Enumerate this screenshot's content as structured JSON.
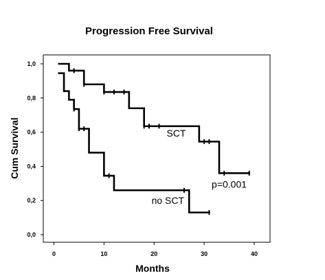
{
  "chart_data": {
    "type": "line",
    "title": "Progression Free Survival",
    "xlabel": "Months",
    "ylabel": "Cum Survival",
    "xlim": [
      -2,
      42
    ],
    "ylim": [
      0.0,
      1.0
    ],
    "x_ticks": [
      0,
      10,
      20,
      30,
      40
    ],
    "x_tick_labels": [
      "0",
      "10",
      "20",
      "30",
      "40"
    ],
    "y_ticks": [
      0.0,
      0.2,
      0.4,
      0.6,
      0.8,
      1.0
    ],
    "y_tick_labels": [
      "0,0",
      "0,2",
      "0,4",
      "0,6",
      "0,8",
      "1,0"
    ],
    "grid": false,
    "series": [
      {
        "name": "SCT",
        "steps": [
          [
            1,
            1.0
          ],
          [
            3,
            0.96
          ],
          [
            6,
            0.88
          ],
          [
            10,
            0.835
          ],
          [
            15,
            0.74
          ],
          [
            18,
            0.635
          ],
          [
            29,
            0.545
          ],
          [
            33,
            0.36
          ],
          [
            39,
            0.36
          ]
        ],
        "censored": [
          [
            4,
            0.96
          ],
          [
            6,
            0.88
          ],
          [
            10,
            0.835
          ],
          [
            12,
            0.835
          ],
          [
            14,
            0.835
          ],
          [
            18,
            0.635
          ],
          [
            19,
            0.635
          ],
          [
            21,
            0.635
          ],
          [
            30,
            0.545
          ],
          [
            31,
            0.545
          ],
          [
            34,
            0.36
          ],
          [
            39,
            0.36
          ]
        ]
      },
      {
        "name": "no SCT",
        "steps": [
          [
            1,
            0.945
          ],
          [
            2,
            0.84
          ],
          [
            3,
            0.79
          ],
          [
            4,
            0.735
          ],
          [
            5,
            0.62
          ],
          [
            7,
            0.48
          ],
          [
            10,
            0.345
          ],
          [
            12,
            0.26
          ],
          [
            27,
            0.13
          ],
          [
            31,
            0.13
          ]
        ],
        "censored": [
          [
            4,
            0.735
          ],
          [
            5,
            0.62
          ],
          [
            6,
            0.62
          ],
          [
            11,
            0.345
          ],
          [
            26,
            0.26
          ],
          [
            31,
            0.13
          ]
        ]
      }
    ],
    "annotations": [
      {
        "text": "SCT",
        "x": 22.5,
        "y": 0.575
      },
      {
        "text": "p=0.001",
        "x": 31.5,
        "y": 0.275
      },
      {
        "text": "no SCT",
        "x": 19.5,
        "y": 0.18
      }
    ]
  }
}
